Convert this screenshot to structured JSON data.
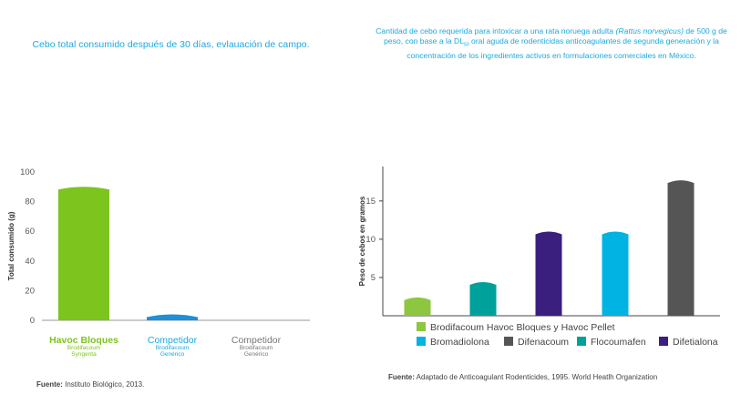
{
  "left": {
    "title": "Cebo total consumido después de 30 días, evlauación de campo.",
    "source_label": "Fuente:",
    "source_text": " Instituto Biológico, 2013."
  },
  "right": {
    "title_part1": "Cantidad de cebo requerida para intoxicar a una rata noruega adulta ",
    "title_italic": "(Rattus norvegicus)",
    "title_part2": " de 500 g de peso, con base a la DL",
    "title_sub": "50",
    "title_part3": " oral aguda de rodenticidas anticoagulantes de segunda generación y la concentración de los ingredientes activos en formulaciones comerciales en México.",
    "source_label": "Fuente:",
    "source_text": " Adaptado de Anticoagulant Rodenticides, 1995. World Heatlh Organization"
  },
  "chart_data": [
    {
      "type": "bar",
      "title": "Cebo total consumido después de 30 días, evlauación de campo.",
      "ylabel": "Total consumido (g)",
      "ylim": [
        0,
        100
      ],
      "yticks": [
        0,
        20,
        40,
        60,
        80,
        100
      ],
      "categories": [
        {
          "name": "Havoc Bloques",
          "sub1": "Brodifacoum",
          "sub2": "Syngenta",
          "color": "#7dc41e",
          "bold": true
        },
        {
          "name": "Competidor",
          "sub1": "Brodifacoum",
          "sub2": "Genérico",
          "color": "#1aa9e0",
          "bold": false
        },
        {
          "name": "Competidor",
          "sub1": "Brodifacoum",
          "sub2": "Genérico",
          "color": "#777777",
          "bold": false
        }
      ],
      "values": [
        90,
        4,
        0
      ],
      "bar_colors": [
        "#7dc41e",
        "#1f8fd6",
        "#777777"
      ],
      "grid": false
    },
    {
      "type": "bar",
      "title": "",
      "ylabel": "Peso de cebos en gramos",
      "ylim": [
        0,
        19.5
      ],
      "yticks": [
        5,
        10,
        15
      ],
      "categories": [
        "",
        "",
        "",
        "",
        ""
      ],
      "values": [
        2.4,
        4.4,
        11.0,
        11.0,
        17.7
      ],
      "bar_colors": [
        "#8dc63f",
        "#00a19a",
        "#3a1f7f",
        "#00b3e3",
        "#555555"
      ],
      "legend": [
        {
          "label": "Brodifacoum Havoc Bloques y Havoc Pellet",
          "color": "#8dc63f"
        },
        {
          "label": "Bromadiolona",
          "color": "#00b3e3"
        },
        {
          "label": "Difenacoum",
          "color": "#555555"
        },
        {
          "label": "Flocoumafen",
          "color": "#00a19a"
        },
        {
          "label": "Difetialona",
          "color": "#3a1f7f"
        }
      ],
      "legend_position": "bottom",
      "grid": false
    }
  ]
}
